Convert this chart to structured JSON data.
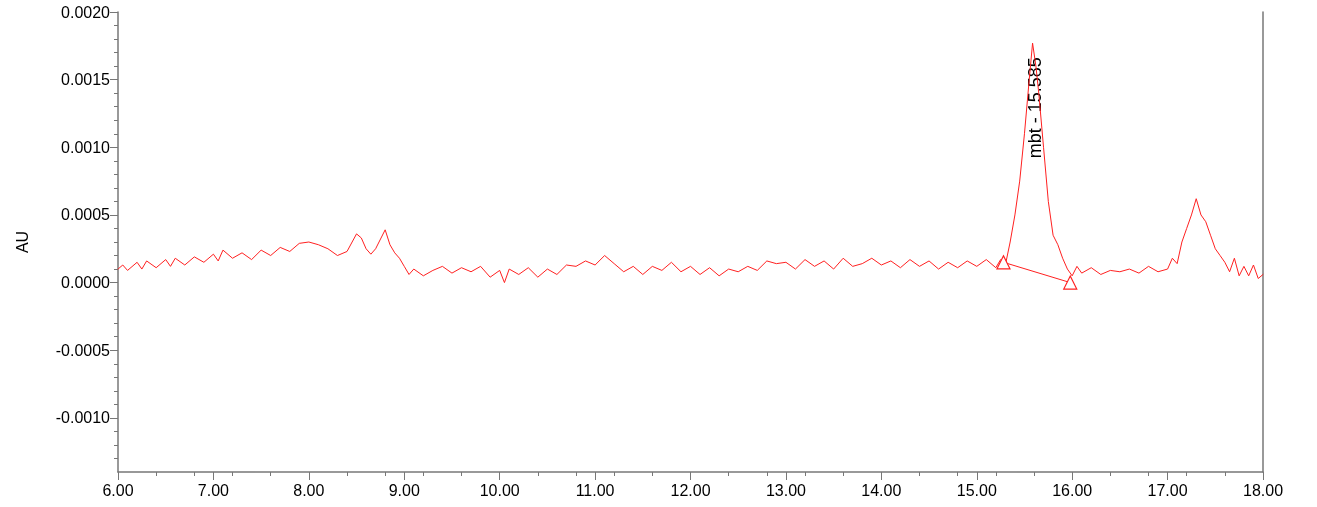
{
  "chart_data": {
    "type": "line",
    "ylabel": "AU",
    "xlim": [
      6,
      18
    ],
    "ylim": [
      -0.0014,
      0.002
    ],
    "xticks": [
      {
        "value": 6,
        "label": "6.00"
      },
      {
        "value": 7,
        "label": "7.00"
      },
      {
        "value": 8,
        "label": "8.00"
      },
      {
        "value": 9,
        "label": "9.00"
      },
      {
        "value": 10,
        "label": "10.00"
      },
      {
        "value": 11,
        "label": "11.00"
      },
      {
        "value": 12,
        "label": "12.00"
      },
      {
        "value": 13,
        "label": "13.00"
      },
      {
        "value": 14,
        "label": "14.00"
      },
      {
        "value": 15,
        "label": "15.00"
      },
      {
        "value": 16,
        "label": "16.00"
      },
      {
        "value": 17,
        "label": "17.00"
      },
      {
        "value": 18,
        "label": "18.00"
      }
    ],
    "yticks": [
      {
        "value": -0.001,
        "label": "-0.0010"
      },
      {
        "value": -0.0005,
        "label": "-0.0005"
      },
      {
        "value": 0,
        "label": "0.0000"
      },
      {
        "value": 0.0005,
        "label": "0.0005"
      },
      {
        "value": 0.001,
        "label": "0.0010"
      },
      {
        "value": 0.0015,
        "label": "0.0015"
      },
      {
        "value": 0.002,
        "label": "0.0020"
      }
    ],
    "grid": false,
    "annotations": [
      {
        "text": "mbt - 15.585",
        "x": 15.585,
        "y": 0.00177
      }
    ],
    "series": [
      {
        "color": "#ff2020",
        "marker": "none",
        "x": [
          6.0,
          6.05,
          6.1,
          6.2,
          6.25,
          6.3,
          6.4,
          6.5,
          6.55,
          6.6,
          6.7,
          6.8,
          6.9,
          7.0,
          7.05,
          7.1,
          7.2,
          7.3,
          7.4,
          7.5,
          7.6,
          7.7,
          7.8,
          7.9,
          8.0,
          8.1,
          8.2,
          8.3,
          8.4,
          8.5,
          8.55,
          8.6,
          8.65,
          8.7,
          8.8,
          8.85,
          8.9,
          8.95,
          9.0,
          9.05,
          9.1,
          9.2,
          9.3,
          9.4,
          9.5,
          9.6,
          9.7,
          9.8,
          9.9,
          10.0,
          10.05,
          10.1,
          10.2,
          10.3,
          10.4,
          10.5,
          10.6,
          10.7,
          10.8,
          10.9,
          11.0,
          11.1,
          11.2,
          11.3,
          11.4,
          11.5,
          11.6,
          11.7,
          11.8,
          11.9,
          12.0,
          12.1,
          12.2,
          12.3,
          12.4,
          12.5,
          12.6,
          12.7,
          12.8,
          12.9,
          13.0,
          13.1,
          13.2,
          13.3,
          13.4,
          13.5,
          13.6,
          13.7,
          13.8,
          13.9,
          14.0,
          14.1,
          14.2,
          14.3,
          14.4,
          14.5,
          14.6,
          14.7,
          14.8,
          14.9,
          15.0,
          15.1,
          15.2,
          15.25,
          15.3,
          15.35,
          15.4,
          15.45,
          15.5,
          15.55,
          15.585,
          15.62,
          15.65,
          15.7,
          15.75,
          15.8,
          15.85,
          15.9,
          15.95,
          16.0,
          16.05,
          16.1,
          16.2,
          16.3,
          16.4,
          16.5,
          16.6,
          16.7,
          16.8,
          16.9,
          17.0,
          17.05,
          17.1,
          17.15,
          17.2,
          17.25,
          17.3,
          17.35,
          17.4,
          17.45,
          17.5,
          17.55,
          17.6,
          17.65,
          17.7,
          17.75,
          17.8,
          17.85,
          17.9,
          17.95,
          18.0
        ],
        "values": [
          0.0001,
          0.00013,
          9e-05,
          0.00015,
          0.0001,
          0.00016,
          0.00011,
          0.00017,
          0.00012,
          0.00018,
          0.00013,
          0.00019,
          0.00015,
          0.00021,
          0.00016,
          0.00024,
          0.00018,
          0.00022,
          0.00017,
          0.00024,
          0.0002,
          0.00026,
          0.00023,
          0.00029,
          0.0003,
          0.00028,
          0.00025,
          0.0002,
          0.00023,
          0.00036,
          0.00033,
          0.00025,
          0.00021,
          0.00025,
          0.00039,
          0.00028,
          0.00022,
          0.00018,
          0.00012,
          6e-05,
          0.0001,
          5e-05,
          9e-05,
          0.00012,
          7e-05,
          0.00011,
          8e-05,
          0.00012,
          4e-05,
          9e-05,
          0.0,
          0.0001,
          6e-05,
          0.00011,
          4e-05,
          0.0001,
          6e-05,
          0.00013,
          0.00012,
          0.00016,
          0.00013,
          0.0002,
          0.00014,
          8e-05,
          0.00012,
          6e-05,
          0.00012,
          9e-05,
          0.00015,
          8e-05,
          0.00012,
          6e-05,
          0.00011,
          5e-05,
          0.0001,
          8e-05,
          0.00012,
          9e-05,
          0.00016,
          0.00014,
          0.00015,
          0.0001,
          0.00017,
          0.00012,
          0.00016,
          0.0001,
          0.00018,
          0.00012,
          0.00014,
          0.00018,
          0.00013,
          0.00016,
          0.00011,
          0.00017,
          0.00012,
          0.00016,
          0.0001,
          0.00015,
          0.00011,
          0.00016,
          0.00012,
          0.00017,
          0.00011,
          0.00017,
          0.00013,
          0.0003,
          0.0005,
          0.00075,
          0.0011,
          0.0015,
          0.00177,
          0.0016,
          0.0014,
          0.001,
          0.0006,
          0.00035,
          0.00028,
          0.00018,
          0.0001,
          5e-05,
          0.00012,
          7e-05,
          0.00011,
          6e-05,
          9e-05,
          8e-05,
          0.0001,
          7e-05,
          0.00012,
          8e-05,
          0.0001,
          0.00018,
          0.00014,
          0.0003,
          0.0004,
          0.0005,
          0.00062,
          0.0005,
          0.00045,
          0.00035,
          0.00025,
          0.0002,
          0.00015,
          8e-05,
          0.00018,
          5e-05,
          0.00012,
          5e-05,
          0.00013,
          3e-05,
          6e-05
        ]
      },
      {
        "color": "#ff2020",
        "marker": "triangle",
        "x": [
          15.28,
          15.98
        ],
        "values": [
          0.00015,
          0.0
        ]
      }
    ]
  }
}
